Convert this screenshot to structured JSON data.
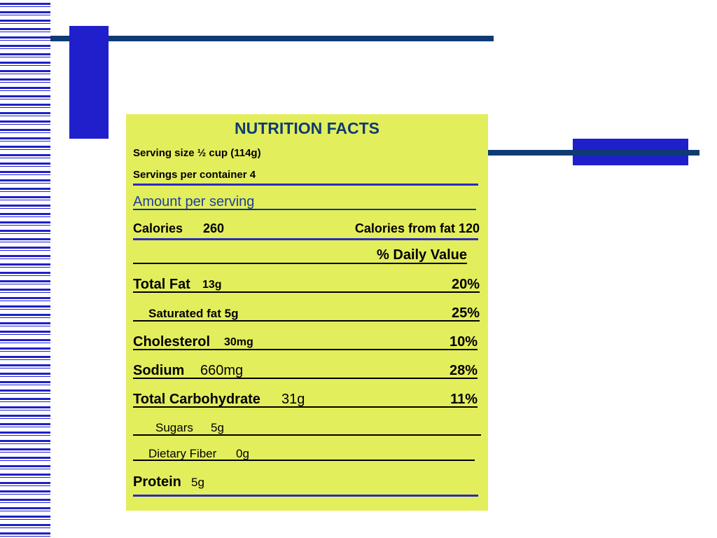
{
  "title": "NUTRITION FACTS",
  "serving_size": "Serving size ½ cup (114g)",
  "servings_per_container": "Servings per container 4",
  "amount_per_serving": "Amount per serving",
  "calories_label": "Calories",
  "calories_value": "260",
  "calories_from_fat": "Calories from fat 120",
  "daily_value_header": "% Daily Value",
  "rows": [
    {
      "label": "Total Fat",
      "amount": "13g",
      "percent": "20%"
    },
    {
      "label": "Saturated fat 5g",
      "amount": "",
      "percent": "25%"
    },
    {
      "label": "Cholesterol",
      "amount": "30mg",
      "percent": "10%"
    },
    {
      "label": "Sodium",
      "amount": "660mg",
      "percent": "28%"
    },
    {
      "label": "Total Carbohydrate",
      "amount": "31g",
      "percent": "11%"
    },
    {
      "label": "Sugars",
      "amount": "5g",
      "percent": ""
    },
    {
      "label": "Dietary Fiber",
      "amount": "0g",
      "percent": ""
    },
    {
      "label": "Protein",
      "amount": "5g",
      "percent": ""
    }
  ],
  "colors": {
    "card_background": "#e3ee5c",
    "accent_blue": "#1f1fcc",
    "navy": "#0e3b73"
  }
}
